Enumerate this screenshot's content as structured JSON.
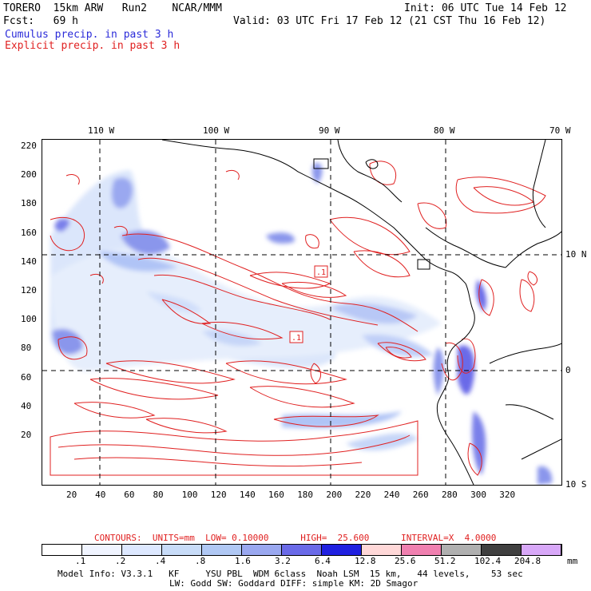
{
  "header": {
    "line1_left": "TORERO  15km ARW   Run2    NCAR/MMM",
    "line1_right": "Init: 06 UTC Tue 14 Feb 12",
    "line2_left": "Fcst:   69 h",
    "line2_right": "Valid: 03 UTC Fri 17 Feb 12 (21 CST Thu 16 Feb 12)",
    "cumulus": "Cumulus precip. in past 3 h",
    "explicit": "Explicit precip. in past 3 h"
  },
  "map": {
    "top_lon_labels": [
      "110 W",
      "100 W",
      "90 W",
      "80 W",
      "70 W"
    ],
    "right_lat_labels": [
      "10 N",
      "0",
      "10 S"
    ],
    "left_y_labels": [
      "220",
      "200",
      "180",
      "160",
      "140",
      "120",
      "100",
      "80",
      "60",
      "40",
      "20"
    ],
    "bottom_x_labels": [
      "20",
      "40",
      "60",
      "80",
      "100",
      "120",
      "140",
      "160",
      "180",
      "200",
      "220",
      "240",
      "260",
      "280",
      "300",
      "320"
    ],
    "contour_labels": [
      ".1",
      ".1"
    ],
    "colors": {
      "coast": "#000000",
      "contour": "#e02020",
      "grid": "#000000"
    }
  },
  "contours_info": "CONTOURS:  UNITS=mm  LOW= 0.10000      HIGH=  25.600      INTERVAL=X  4.0000",
  "scale": {
    "labels": [
      ".1",
      ".2",
      ".4",
      ".8",
      "1.6",
      "3.2",
      "6.4",
      "12.8",
      "25.6",
      "51.2",
      "102.4",
      "204.8"
    ],
    "unit": "mm",
    "colors": [
      "#ffffff",
      "#f0f4ff",
      "#dde8ff",
      "#c8dcf8",
      "#b0c8f4",
      "#9aa8f0",
      "#6a6ae8",
      "#2020e0",
      "#ffd8d8",
      "#f080b0",
      "#b0b0b0",
      "#404040",
      "#d8a8f8"
    ]
  },
  "model_info": {
    "line1": "Model Info: V3.3.1   KF     YSU PBL  WDM 6class  Noah LSM  15 km,   44 levels,    53 sec",
    "line2": "LW: Godd SW: Goddard DIFF: simple KM: 2D Smagor"
  }
}
